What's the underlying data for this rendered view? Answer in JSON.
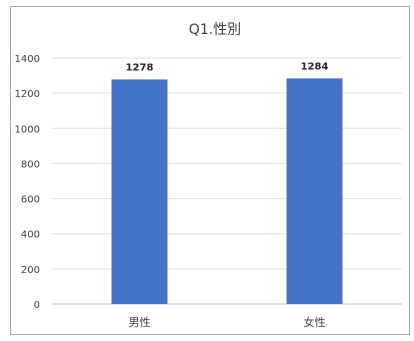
{
  "chart_data": {
    "type": "bar",
    "title": "Q1.性別",
    "categories": [
      "男性",
      "女性"
    ],
    "values": [
      1278,
      1284
    ],
    "data_labels": [
      "1278",
      "1284"
    ],
    "ylim": [
      0,
      1400
    ],
    "yticks": [
      0,
      200,
      400,
      600,
      800,
      1000,
      1200,
      1400
    ],
    "grid": true,
    "legend": "none",
    "bar_color": "#4472c4"
  }
}
